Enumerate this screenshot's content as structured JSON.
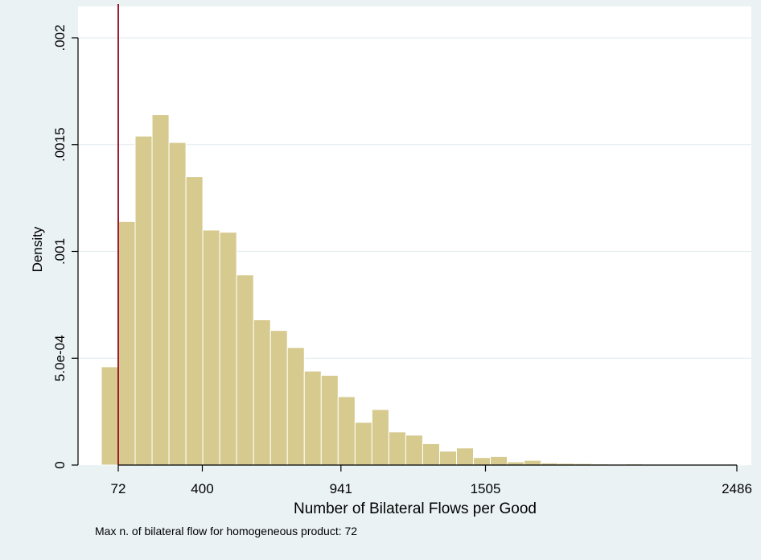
{
  "chart_data": {
    "type": "bar",
    "xlabel": "Number of Bilateral Flows per Good",
    "ylabel": "Density",
    "x_ticks": [
      72,
      400,
      941,
      1505,
      2486
    ],
    "y_ticks": [
      {
        "value": 0,
        "label": "0"
      },
      {
        "value": 0.0005,
        "label": "5.0e-04"
      },
      {
        "value": 0.001,
        "label": ".001"
      },
      {
        "value": 0.0015,
        "label": ".0015"
      },
      {
        "value": 0.002,
        "label": ".002"
      }
    ],
    "xlim": [
      0,
      2530
    ],
    "ylim": [
      0,
      0.002
    ],
    "grid": true,
    "bin_width": 66,
    "bins": [
      {
        "start": 6,
        "value": 0.00046
      },
      {
        "start": 72,
        "value": 0.00114
      },
      {
        "start": 138,
        "value": 0.00154
      },
      {
        "start": 204,
        "value": 0.00164
      },
      {
        "start": 270,
        "value": 0.00151
      },
      {
        "start": 336,
        "value": 0.00135
      },
      {
        "start": 402,
        "value": 0.0011
      },
      {
        "start": 468,
        "value": 0.00109
      },
      {
        "start": 534,
        "value": 0.00089
      },
      {
        "start": 600,
        "value": 0.00068
      },
      {
        "start": 666,
        "value": 0.00063
      },
      {
        "start": 732,
        "value": 0.00055
      },
      {
        "start": 798,
        "value": 0.00044
      },
      {
        "start": 864,
        "value": 0.00042
      },
      {
        "start": 930,
        "value": 0.00032
      },
      {
        "start": 996,
        "value": 0.0002
      },
      {
        "start": 1062,
        "value": 0.00026
      },
      {
        "start": 1128,
        "value": 0.000155
      },
      {
        "start": 1194,
        "value": 0.00014
      },
      {
        "start": 1260,
        "value": 0.0001
      },
      {
        "start": 1326,
        "value": 6.5e-05
      },
      {
        "start": 1392,
        "value": 8e-05
      },
      {
        "start": 1458,
        "value": 3.5e-05
      },
      {
        "start": 1524,
        "value": 4e-05
      },
      {
        "start": 1590,
        "value": 1.5e-05
      },
      {
        "start": 1656,
        "value": 2.2e-05
      },
      {
        "start": 1722,
        "value": 1e-05
      },
      {
        "start": 1788,
        "value": 8e-06
      },
      {
        "start": 1854,
        "value": 7e-06
      },
      {
        "start": 1920,
        "value": 5e-06
      },
      {
        "start": 1986,
        "value": 4e-06
      },
      {
        "start": 2052,
        "value": 5e-06
      },
      {
        "start": 2118,
        "value": 3e-06
      },
      {
        "start": 2184,
        "value": 3e-06
      },
      {
        "start": 2250,
        "value": 3e-06
      },
      {
        "start": 2316,
        "value": 2e-06
      },
      {
        "start": 2382,
        "value": 0
      },
      {
        "start": 2448,
        "value": 4e-06
      }
    ],
    "reference_line": {
      "x": 72,
      "color": "#9e1b32"
    },
    "bar_color": "#d6ca8e",
    "bar_edge_color": "#ffffff",
    "background_color": "#eaf2f3",
    "plot_background": "#ffffff",
    "grid_color": "#e7eef0"
  },
  "note": "Max n. of bilateral flow for homogeneous product: 72"
}
